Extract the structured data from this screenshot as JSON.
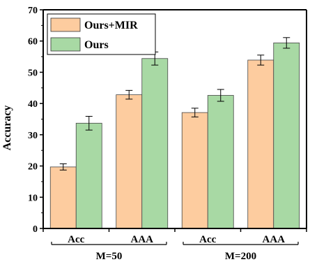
{
  "chart_data": {
    "type": "bar",
    "ylabel": "Accuracy",
    "ylim": [
      0,
      70
    ],
    "yticks": [
      0,
      10,
      20,
      30,
      40,
      50,
      60,
      70
    ],
    "categories": [
      "Acc",
      "AAA",
      "Acc",
      "AAA"
    ],
    "groups": [
      {
        "label": "M=50",
        "categories": [
          0,
          1
        ]
      },
      {
        "label": "M=200",
        "categories": [
          2,
          3
        ]
      }
    ],
    "series": [
      {
        "name": "Ours+MIR",
        "color": "#fdcc9f",
        "values": [
          19.7,
          42.8,
          37.1,
          53.9
        ],
        "errors": [
          1.0,
          1.4,
          1.4,
          1.6
        ]
      },
      {
        "name": "Ours",
        "color": "#a8d9a4",
        "values": [
          33.7,
          54.4,
          42.6,
          59.4
        ],
        "errors": [
          2.2,
          2.1,
          1.9,
          1.7
        ]
      }
    ],
    "legend_position": "top-left",
    "grid": false
  }
}
